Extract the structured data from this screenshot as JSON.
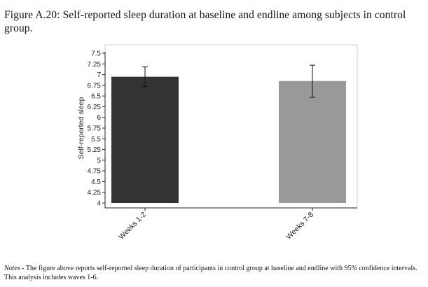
{
  "caption": {
    "label": "Figure A.20:",
    "text": "Self-reported sleep duration at baseline and endline among subjects in control group."
  },
  "notes": {
    "label": "Notes",
    "text": " - The figure above reports self-reported sleep duration of participants in control group at baseline and endline with 95% confidence intervals. This analysis includes waves 1-6."
  },
  "chart_data": {
    "type": "bar",
    "categories": [
      "Weeks 1-2",
      "Weeks 7-8"
    ],
    "values": [
      6.95,
      6.85
    ],
    "ci_low": [
      6.72,
      6.47
    ],
    "ci_high": [
      7.18,
      7.22
    ],
    "colors": [
      "#333333",
      "#999999"
    ],
    "ylabel": "Self-reported sleep",
    "xlabel": "",
    "ylim": [
      4,
      7.5
    ],
    "yticks": [
      4,
      4.25,
      4.5,
      4.75,
      5,
      5.25,
      5.5,
      5.75,
      6,
      6.25,
      6.5,
      6.75,
      7,
      7.25,
      7.5
    ],
    "grid": false,
    "legend": "none"
  }
}
